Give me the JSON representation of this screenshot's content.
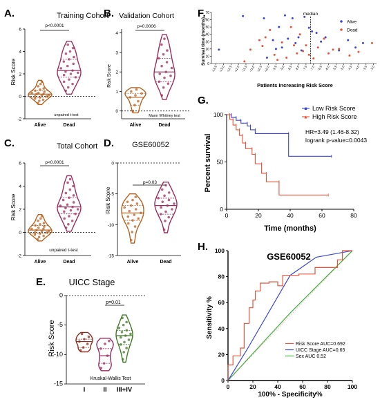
{
  "figure": {
    "panels": [
      {
        "letter": "A.",
        "title": "Training Cohort"
      },
      {
        "letter": "B.",
        "title": "Validation Cohort"
      },
      {
        "letter": "C.",
        "title": "Total Cohort"
      },
      {
        "letter": "D.",
        "title": "GSE60052"
      },
      {
        "letter": "E.",
        "title": "UICC Stage"
      },
      {
        "letter": "F.",
        "title": ""
      },
      {
        "letter": "G.",
        "title": ""
      },
      {
        "letter": "H.",
        "title": "GSE60052"
      }
    ]
  },
  "chart_data": [
    {
      "id": "A",
      "type": "violin",
      "title": "Training Cohort",
      "xlabel": "",
      "ylabel": "Risk Score",
      "categories": [
        "Alive",
        "Dead"
      ],
      "yticks": [
        -2,
        0,
        2,
        4,
        6
      ],
      "ylim": [
        -2,
        6
      ],
      "colors": [
        "#b8611f",
        "#9b2c5e"
      ],
      "series": [
        {
          "name": "Alive",
          "values": [
            -0.6,
            -0.4,
            -0.3,
            -0.2,
            -0.1,
            0.0,
            0.0,
            0.1,
            0.1,
            0.2,
            0.2,
            0.3,
            0.3,
            0.4,
            0.5,
            0.6,
            0.7,
            0.9,
            1.1,
            1.3
          ]
        },
        {
          "name": "Dead",
          "values": [
            0.5,
            0.8,
            1.1,
            1.3,
            1.5,
            1.7,
            1.9,
            2.0,
            2.1,
            2.2,
            2.3,
            2.5,
            2.7,
            2.9,
            3.1,
            3.3,
            3.5,
            3.8,
            4.0,
            4.3,
            4.6
          ]
        }
      ],
      "annotations": [
        "p<0.0001",
        "unpaired t-test"
      ]
    },
    {
      "id": "B",
      "type": "violin",
      "title": "Validation Cohort",
      "xlabel": "",
      "ylabel": "Risk Score",
      "categories": [
        "Alive",
        "Dead"
      ],
      "yticks": [
        0,
        1,
        2,
        3,
        4
      ],
      "ylim": [
        -0.4,
        4.2
      ],
      "colors": [
        "#b8611f",
        "#9b2c5e"
      ],
      "series": [
        {
          "name": "Alive",
          "values": [
            0.0,
            0.3,
            0.5,
            0.7,
            0.8,
            0.9,
            1.0,
            1.1
          ]
        },
        {
          "name": "Dead",
          "values": [
            0.8,
            1.2,
            1.4,
            1.5,
            1.7,
            1.8,
            1.9,
            2.0,
            2.2,
            2.3,
            2.5,
            2.7,
            2.9,
            3.1,
            3.4,
            3.7
          ]
        }
      ],
      "annotations": [
        "p=0.0006",
        "Mann Whitney test"
      ]
    },
    {
      "id": "C",
      "type": "violin",
      "title": "Total Cohort",
      "xlabel": "",
      "ylabel": "Risk Score",
      "categories": [
        "Alive",
        "Dead"
      ],
      "yticks": [
        -2,
        0,
        2,
        4,
        6
      ],
      "ylim": [
        -2,
        6
      ],
      "colors": [
        "#b8611f",
        "#9b2c5e"
      ],
      "series": [
        {
          "name": "Alive",
          "values": [
            -0.6,
            -0.4,
            -0.3,
            -0.2,
            -0.1,
            0.0,
            0.0,
            0.1,
            0.1,
            0.2,
            0.3,
            0.3,
            0.4,
            0.5,
            0.6,
            0.7,
            0.8,
            1.0,
            1.2,
            1.4
          ]
        },
        {
          "name": "Dead",
          "values": [
            0.4,
            0.7,
            1.0,
            1.2,
            1.4,
            1.6,
            1.8,
            1.9,
            2.0,
            2.1,
            2.2,
            2.3,
            2.4,
            2.6,
            2.8,
            3.0,
            3.2,
            3.4,
            3.7,
            4.0,
            4.3,
            4.6
          ]
        }
      ],
      "annotations": [
        "p<0.0001",
        "unpaired t-test"
      ]
    },
    {
      "id": "D",
      "type": "violin",
      "title": "GSE60052",
      "xlabel": "",
      "ylabel": "Risk Score",
      "categories": [
        "Alive",
        "Dead"
      ],
      "yticks": [
        -15,
        -10,
        -5,
        0
      ],
      "ylim": [
        -15,
        0
      ],
      "colors": [
        "#b8611f",
        "#9b2c5e"
      ],
      "series": [
        {
          "name": "Alive",
          "values": [
            -12.5,
            -11.2,
            -10.3,
            -9.8,
            -9.3,
            -9.0,
            -8.7,
            -8.4,
            -8.1,
            -7.8,
            -7.5,
            -7.2,
            -6.9,
            -6.6,
            -6.3,
            -6.0,
            -5.5
          ]
        },
        {
          "name": "Dead",
          "values": [
            -10.8,
            -9.4,
            -8.8,
            -8.3,
            -7.9,
            -7.5,
            -7.2,
            -6.9,
            -6.6,
            -6.3,
            -6.0,
            -5.7,
            -5.3,
            -4.8,
            -4.3,
            -3.6
          ]
        }
      ],
      "annotations": [
        "p=0.03"
      ]
    },
    {
      "id": "E",
      "type": "violin",
      "title": "UICC Stage",
      "xlabel": "",
      "ylabel": "Risk Score",
      "categories": [
        "I",
        "II",
        "III+IV"
      ],
      "yticks": [
        -15,
        -10,
        -5,
        0
      ],
      "ylim": [
        -15,
        0
      ],
      "colors": [
        "#8b2e1f",
        "#9b2c5e",
        "#3f7a25"
      ],
      "series": [
        {
          "name": "I",
          "values": [
            -9.3,
            -8.8,
            -8.2,
            -7.8,
            -7.4,
            -7.0,
            -6.5
          ]
        },
        {
          "name": "II",
          "values": [
            -12.3,
            -11.5,
            -10.2,
            -9.0,
            -8.2,
            -7.7
          ]
        },
        {
          "name": "III+IV",
          "values": [
            -10.8,
            -9.6,
            -8.9,
            -8.3,
            -7.9,
            -7.5,
            -7.1,
            -6.8,
            -6.5,
            -6.2,
            -5.9,
            -5.5,
            -5.0,
            -4.5,
            -3.8
          ]
        }
      ],
      "annotations": [
        "p=0.01",
        "Kruskal-Wallis Test"
      ]
    },
    {
      "id": "F",
      "type": "scatter",
      "xlabel": "Patients Increasing Risk Score",
      "ylabel": "Survival time (months)",
      "xticks": [
        "-13.5",
        "-13.0",
        "-12.5",
        "-12.0",
        "-11.5",
        "-11.0",
        "-10.5",
        "-10.0",
        "-9.5",
        "-9.0",
        "-8.5",
        "-8.0",
        "-7.5",
        "-7.0",
        "-6.5",
        "-6.0",
        "-5.5",
        "-5.0",
        "-4.5",
        "-4.0",
        "-3.5",
        "-3.0"
      ],
      "yticks": [
        0,
        10,
        20,
        30,
        40,
        50,
        60,
        70
      ],
      "xlim": [
        -13.8,
        -2.8
      ],
      "ylim": [
        0,
        70
      ],
      "median_label": "median",
      "median_x": -7.2,
      "legend": [
        {
          "name": "Alive",
          "color": "#3a45d6"
        },
        {
          "name": "Dead",
          "color": "#e8523a"
        }
      ],
      "series": [
        {
          "name": "Alive",
          "points": [
            [
              -13.3,
              19
            ],
            [
              -11.7,
              65
            ],
            [
              -10.3,
              62
            ],
            [
              -10.1,
              8
            ],
            [
              -9.7,
              32
            ],
            [
              -9.5,
              20
            ],
            [
              -9.3,
              50
            ],
            [
              -9.1,
              22
            ],
            [
              -8.9,
              66
            ],
            [
              -8.7,
              34
            ],
            [
              -8.4,
              62
            ],
            [
              -8.2,
              28
            ],
            [
              -8.0,
              36
            ],
            [
              -7.8,
              18
            ],
            [
              -7.6,
              64
            ],
            [
              -7.3,
              49
            ],
            [
              -7.1,
              44
            ],
            [
              -6.8,
              42
            ],
            [
              -6.5,
              30
            ],
            [
              -6.2,
              36
            ],
            [
              -5.3,
              18
            ],
            [
              -4.7,
              32
            ],
            [
              -4.2,
              22
            ],
            [
              -3.7,
              28
            ]
          ]
        },
        {
          "name": "Dead",
          "points": [
            [
              -11.6,
              3
            ],
            [
              -11.2,
              19
            ],
            [
              -10.6,
              32
            ],
            [
              -10.4,
              24
            ],
            [
              -10.2,
              36
            ],
            [
              -9.9,
              46
            ],
            [
              -9.6,
              12
            ],
            [
              -9.4,
              5
            ],
            [
              -9.1,
              29
            ],
            [
              -8.8,
              8
            ],
            [
              -8.5,
              50
            ],
            [
              -8.3,
              25
            ],
            [
              -8.1,
              14
            ],
            [
              -7.9,
              40
            ],
            [
              -7.7,
              17
            ],
            [
              -7.5,
              25
            ],
            [
              -7.3,
              12
            ],
            [
              -7.0,
              7
            ],
            [
              -6.7,
              22
            ],
            [
              -6.3,
              34
            ],
            [
              -6.0,
              14
            ],
            [
              -5.7,
              19
            ],
            [
              -5.3,
              20
            ],
            [
              -4.6,
              11
            ],
            [
              -4.0,
              16
            ],
            [
              -3.1,
              28
            ]
          ]
        }
      ]
    },
    {
      "id": "G",
      "type": "line",
      "xlabel": "Time (months)",
      "ylabel": "Percent survival",
      "xticks": [
        0,
        20,
        40,
        60,
        80
      ],
      "yticks": [
        0,
        50,
        100
      ],
      "xlim": [
        0,
        80
      ],
      "ylim": [
        0,
        100
      ],
      "legend": [
        {
          "name": "Low Risk Score",
          "color": "#3a45d6"
        },
        {
          "name": "High Risk Score",
          "color": "#e8523a"
        }
      ],
      "annotations": [
        "HR=3.49 (1.46-8.32)",
        "logrank p-value=0.0043"
      ],
      "series": [
        {
          "name": "Low Risk Score",
          "points": [
            [
              0,
              100
            ],
            [
              3,
              100
            ],
            [
              3,
              97
            ],
            [
              6,
              97
            ],
            [
              6,
              94
            ],
            [
              9,
              94
            ],
            [
              9,
              91
            ],
            [
              13,
              91
            ],
            [
              13,
              88
            ],
            [
              15,
              88
            ],
            [
              15,
              84
            ],
            [
              18,
              84
            ],
            [
              18,
              80
            ],
            [
              39,
              80
            ],
            [
              39,
              56
            ],
            [
              66,
              56
            ]
          ]
        },
        {
          "name": "High Risk Score",
          "points": [
            [
              0,
              100
            ],
            [
              2,
              100
            ],
            [
              2,
              95
            ],
            [
              4,
              95
            ],
            [
              4,
              89
            ],
            [
              6,
              89
            ],
            [
              6,
              84
            ],
            [
              8,
              84
            ],
            [
              8,
              78
            ],
            [
              10,
              78
            ],
            [
              10,
              70
            ],
            [
              12,
              70
            ],
            [
              12,
              64
            ],
            [
              16,
              64
            ],
            [
              16,
              58
            ],
            [
              18,
              58
            ],
            [
              18,
              48
            ],
            [
              22,
              48
            ],
            [
              22,
              38
            ],
            [
              25,
              38
            ],
            [
              25,
              29
            ],
            [
              33,
              29
            ],
            [
              33,
              15
            ],
            [
              64,
              15
            ]
          ]
        }
      ]
    },
    {
      "id": "H",
      "type": "line",
      "title": "GSE60052",
      "xlabel": "100% - Specificity%",
      "ylabel": "Sensitivity %",
      "xticks": [
        0,
        20,
        40,
        60,
        80,
        100
      ],
      "yticks": [
        0,
        20,
        40,
        60,
        80,
        100
      ],
      "xlim": [
        0,
        100
      ],
      "ylim": [
        0,
        100
      ],
      "legend": [
        {
          "name": "Risk Score AUC=0.692",
          "color": "#e8523a"
        },
        {
          "name": "UICC Stage AUC=0.65",
          "color": "#3a45d6"
        },
        {
          "name": "Sex AUC 0.52",
          "color": "#3fae3a"
        }
      ],
      "series": [
        {
          "name": "Risk Score AUC=0.692",
          "points": [
            [
              0,
              0
            ],
            [
              0,
              12
            ],
            [
              4,
              12
            ],
            [
              4,
              19
            ],
            [
              10,
              19
            ],
            [
              10,
              25
            ],
            [
              13,
              25
            ],
            [
              13,
              44
            ],
            [
              17,
              44
            ],
            [
              17,
              56
            ],
            [
              20,
              56
            ],
            [
              20,
              62
            ],
            [
              22,
              62
            ],
            [
              22,
              69
            ],
            [
              26,
              69
            ],
            [
              26,
              75
            ],
            [
              33,
              75
            ],
            [
              33,
              76
            ],
            [
              40,
              76
            ],
            [
              40,
              73
            ],
            [
              44,
              73
            ],
            [
              44,
              81
            ],
            [
              57,
              81
            ],
            [
              57,
              82
            ],
            [
              70,
              82
            ],
            [
              70,
              87
            ],
            [
              88,
              87
            ],
            [
              88,
              93
            ],
            [
              92,
              93
            ],
            [
              92,
              100
            ],
            [
              100,
              100
            ]
          ]
        },
        {
          "name": "UICC Stage AUC=0.65",
          "points": [
            [
              0,
              0
            ],
            [
              16,
              25
            ],
            [
              50,
              81
            ],
            [
              71,
              95
            ],
            [
              100,
              100
            ]
          ]
        },
        {
          "name": "Sex AUC 0.52",
          "points": [
            [
              0,
              0
            ],
            [
              50,
              52
            ],
            [
              100,
              100
            ]
          ]
        }
      ]
    }
  ]
}
